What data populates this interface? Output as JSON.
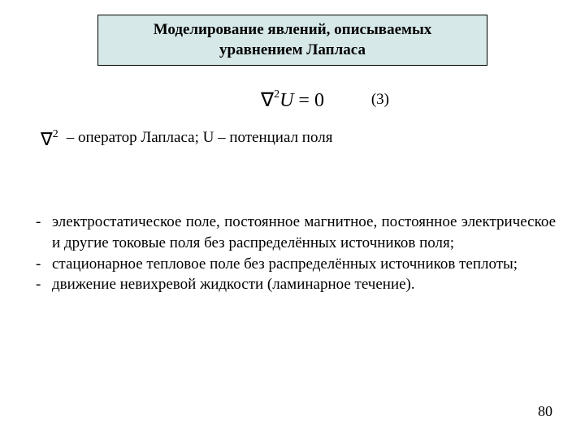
{
  "slide": {
    "title_line1": "Моделирование явлений, описываемых",
    "title_line2": "уравнением Лапласа",
    "equation_number": "(3)",
    "equation_nabla": "∇",
    "equation_exp": "2",
    "equation_var": "U",
    "equation_eq": " = 0",
    "def_nabla": "∇",
    "def_exp": "2",
    "def_text": " – оператор Лапласа; U – потенциал поля",
    "bullets": [
      "электростатическое поле, постоянное магнитное, постоянное электрическое и другие токовые поля без распределённых источников поля;",
      "стационарное тепловое поле без распределённых источников теплоты;",
      "движение невихревой жидкости (ламинарное течение)."
    ],
    "page_number": "80",
    "dash": "-"
  },
  "style": {
    "title_bg": "#d7e8e8",
    "title_border": "#000000",
    "page_bg": "#ffffff",
    "text_color": "#000000",
    "title_fontsize": 19,
    "body_fontsize": 19,
    "eq_fontsize": 24
  }
}
